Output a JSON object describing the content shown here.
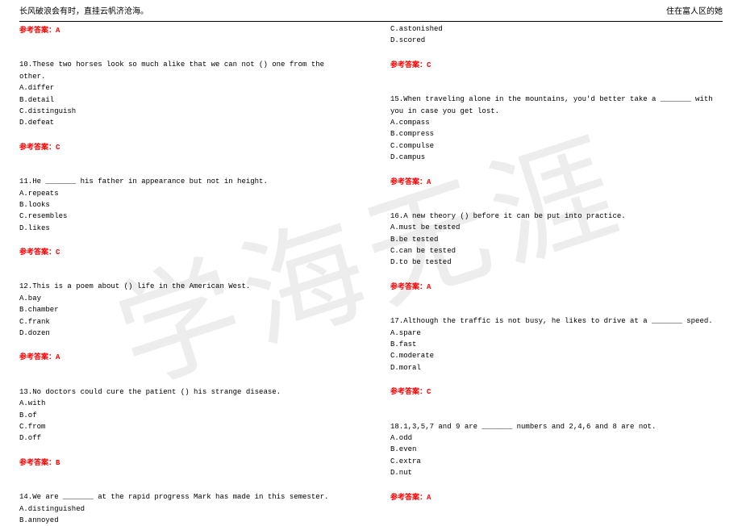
{
  "header": {
    "left": "长风破浪会有时，直挂云帆济沧海。",
    "right": "住在富人区的她"
  },
  "answer_label": "参考答案：",
  "left_col": {
    "q9_answer": "A",
    "q10": {
      "stem": "10.These two horses look so much alike that we can not () one from the other.",
      "A": "A.differ",
      "B": "B.detail",
      "C": "C.distinguish",
      "D": "D.defeat",
      "answer": "C"
    },
    "q11": {
      "stem": "11.He _______ his father in appearance but not in height.",
      "A": "A.repeats",
      "B": "B.looks",
      "C": "C.resembles",
      "D": "D.likes",
      "answer": "C"
    },
    "q12": {
      "stem": "12.This is a poem about () life in the American West.",
      "A": "A.bay",
      "B": "B.chamber",
      "C": "C.frank",
      "D": "D.dozen",
      "answer": "A"
    },
    "q13": {
      "stem": "13.No doctors could cure the patient () his strange disease.",
      "A": "A.with",
      "B": "B.of",
      "C": "C.from",
      "D": "D.off",
      "answer": "B"
    },
    "q14": {
      "stem": "14.We are _______ at the rapid progress Mark has made in this semester.",
      "A": "A.distinguished",
      "B": "B.annoyed"
    }
  },
  "right_col": {
    "q14c": {
      "C": "C.astonished",
      "D": "D.scored",
      "answer": "C"
    },
    "q15": {
      "stem": "15.When traveling alone in the mountains, you'd better take a _______ with you in case you get lost.",
      "A": "A.compass",
      "B": "B.compress",
      "C": "C.compulse",
      "D": "D.campus",
      "answer": "A"
    },
    "q16": {
      "stem": "16.A new theory () before it can be put into practice.",
      "A": "A.must be tested",
      "B": "B.be tested",
      "C": "C.can be tested",
      "D": "D.to be tested",
      "answer": "A"
    },
    "q17": {
      "stem": "17.Although the traffic is not busy, he likes to drive at a _______ speed.",
      "A": "A.spare",
      "B": "B.fast",
      "C": "C.moderate",
      "D": "D.moral",
      "answer": "C"
    },
    "q18": {
      "stem": "18.1,3,5,7 and 9 are _______ numbers and 2,4,6 and 8 are not.",
      "A": "A.odd",
      "B": "B.even",
      "C": "C.extra",
      "D": "D.nut",
      "answer": "A"
    }
  }
}
